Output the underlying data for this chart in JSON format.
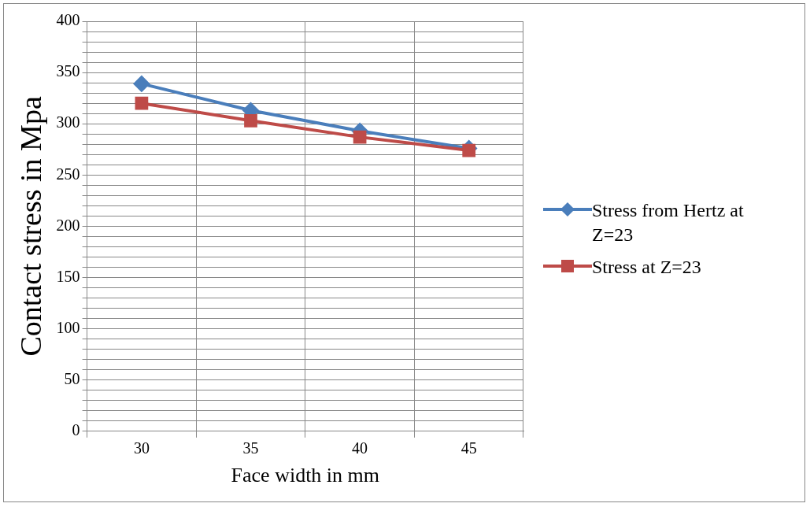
{
  "chart_data": {
    "type": "line",
    "xlabel": "Face width in mm",
    "ylabel": "Contact stress in Mpa",
    "categories": [
      "30",
      "35",
      "40",
      "45"
    ],
    "series": [
      {
        "name": "Stress from Hertz at Z=23",
        "color": "#4a7ebb",
        "marker": "diamond",
        "values": [
          339,
          313,
          293,
          276
        ]
      },
      {
        "name": "Stress at Z=23",
        "color": "#be4b48",
        "marker": "square",
        "values": [
          320,
          303,
          287,
          274
        ]
      }
    ],
    "ylim": [
      0,
      400
    ],
    "yticks": [
      0,
      {
        "value": 10,
        "label": null
      },
      {
        "value": 20,
        "label": null
      },
      {
        "value": 30,
        "label": null
      },
      {
        "value": 40,
        "label": null
      },
      50,
      {
        "value": 60,
        "label": null
      },
      {
        "value": 70,
        "label": null
      },
      {
        "value": 80,
        "label": null
      },
      {
        "value": 90,
        "label": null
      },
      100,
      {
        "value": 110,
        "label": null
      },
      {
        "value": 120,
        "label": null
      },
      {
        "value": 130,
        "label": null
      },
      {
        "value": 140,
        "label": null
      },
      150,
      {
        "value": 160,
        "label": null
      },
      {
        "value": 170,
        "label": null
      },
      {
        "value": 180,
        "label": null
      },
      {
        "value": 190,
        "label": null
      },
      200,
      {
        "value": 210,
        "label": null
      },
      {
        "value": 220,
        "label": null
      },
      {
        "value": 230,
        "label": null
      },
      {
        "value": 240,
        "label": null
      },
      250,
      {
        "value": 260,
        "label": null
      },
      {
        "value": 270,
        "label": null
      },
      {
        "value": 280,
        "label": null
      },
      {
        "value": 290,
        "label": null
      },
      300,
      {
        "value": 310,
        "label": null
      },
      {
        "value": 320,
        "label": null
      },
      {
        "value": 330,
        "label": null
      },
      {
        "value": 340,
        "label": null
      },
      350,
      {
        "value": 360,
        "label": null
      },
      {
        "value": 370,
        "label": null
      },
      {
        "value": 380,
        "label": null
      },
      {
        "value": 390,
        "label": null
      },
      400
    ],
    "grid": true,
    "legend": "right",
    "line_style": "solid"
  }
}
